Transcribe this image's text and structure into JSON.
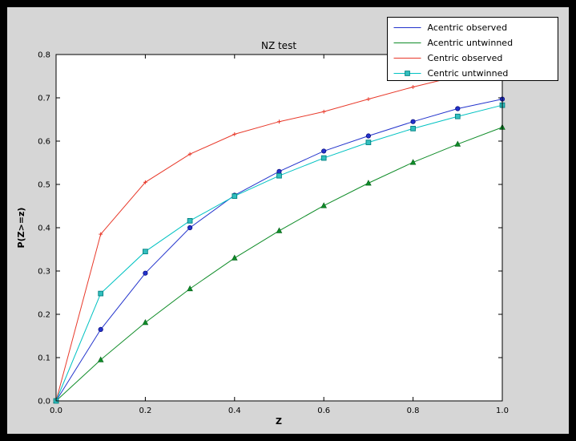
{
  "window": {
    "background": "#000000"
  },
  "figure": {
    "background": "#d6d6d6",
    "plot_background": "#ffffff",
    "axis_color": "#000000"
  },
  "chart_data": {
    "type": "line",
    "title": "NZ test",
    "xlabel": "Z",
    "ylabel": "P(Z>=z)",
    "xlim": [
      0.0,
      1.0
    ],
    "ylim": [
      0.0,
      0.8
    ],
    "xticks": [
      0.0,
      0.2,
      0.4,
      0.6,
      0.8,
      1.0
    ],
    "yticks": [
      0.0,
      0.1,
      0.2,
      0.3,
      0.4,
      0.5,
      0.6,
      0.7,
      0.8
    ],
    "grid": false,
    "legend_position": "upper right",
    "x": [
      0.0,
      0.1,
      0.2,
      0.3,
      0.4,
      0.5,
      0.6,
      0.7,
      0.8,
      0.9,
      1.0
    ],
    "series": [
      {
        "name": "Acentric observed",
        "color": "#2233cc",
        "marker": "circle",
        "marker_fill": "#2233cc",
        "marker_edge": "#101080",
        "legend_marker": false,
        "values": [
          0.0,
          0.165,
          0.295,
          0.4,
          0.475,
          0.53,
          0.577,
          0.612,
          0.645,
          0.675,
          0.697
        ]
      },
      {
        "name": "Acentric untwinned",
        "color": "#0f8c28",
        "marker": "triangle",
        "marker_fill": "#0f8c28",
        "marker_edge": "#06601a",
        "legend_marker": false,
        "values": [
          0.0,
          0.095,
          0.181,
          0.259,
          0.33,
          0.393,
          0.451,
          0.503,
          0.551,
          0.593,
          0.632
        ]
      },
      {
        "name": "Centric observed",
        "color": "#e8392a",
        "marker": "plus",
        "marker_fill": "#e8392a",
        "marker_edge": "#e8392a",
        "legend_marker": false,
        "values": [
          0.0,
          0.385,
          0.505,
          0.57,
          0.616,
          0.645,
          0.668,
          0.697,
          0.725,
          0.75,
          0.772
        ]
      },
      {
        "name": "Centric untwinned",
        "color": "#00c2c2",
        "marker": "square",
        "marker_fill": "#33bfbf",
        "marker_edge": "#008080",
        "legend_marker": true,
        "values": [
          0.0,
          0.248,
          0.345,
          0.416,
          0.473,
          0.52,
          0.561,
          0.597,
          0.629,
          0.657,
          0.683
        ]
      }
    ]
  }
}
